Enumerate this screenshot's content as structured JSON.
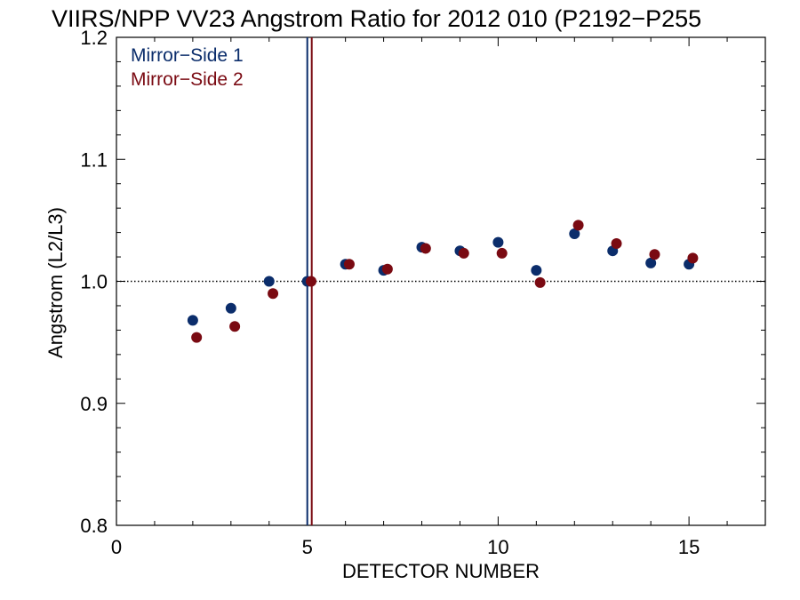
{
  "chart_data": {
    "type": "scatter",
    "title": "VIIRS/NPP VV23 Angstrom Ratio for 2012 010 (P2192−P255",
    "xlabel": "DETECTOR NUMBER",
    "ylabel": "Angstrom (L2/L3)",
    "xlim": [
      0,
      17
    ],
    "ylim": [
      0.8,
      1.2
    ],
    "x_ticks": [
      "0",
      "5",
      "10",
      "15"
    ],
    "y_ticks": [
      "0.8",
      "0.9",
      "1.0",
      "1.1",
      "1.2"
    ],
    "reference_line_y": 1.0,
    "vertical_lines_x": [
      5
    ],
    "legend_position": "top-left",
    "series": [
      {
        "name": "Mirror−Side 1",
        "color": "#0b2d6b",
        "x": [
          2,
          3,
          4,
          5,
          6,
          7,
          8,
          9,
          10,
          11,
          12,
          13,
          14,
          15
        ],
        "y": [
          0.968,
          0.978,
          1.0,
          1.0,
          1.014,
          1.009,
          1.028,
          1.025,
          1.032,
          1.009,
          1.039,
          1.025,
          1.015,
          1.014
        ]
      },
      {
        "name": "Mirror−Side 2",
        "color": "#7a0a12",
        "x": [
          2,
          3,
          4,
          5,
          6,
          7,
          8,
          9,
          10,
          11,
          12,
          13,
          14,
          15
        ],
        "y": [
          0.954,
          0.963,
          0.99,
          1.0,
          1.014,
          1.01,
          1.027,
          1.023,
          1.023,
          0.999,
          1.046,
          1.031,
          1.022,
          1.019
        ]
      }
    ]
  }
}
